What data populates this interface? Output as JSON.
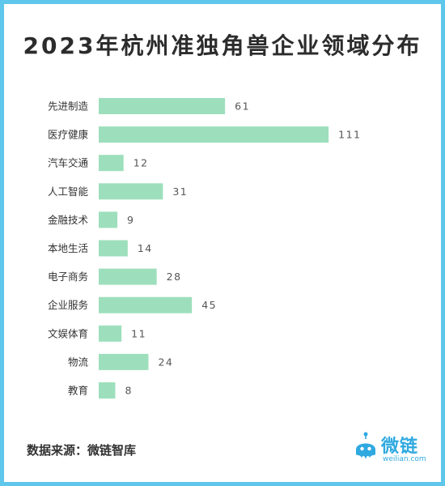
{
  "chart_data": {
    "type": "bar",
    "orientation": "horizontal",
    "title": "2023年杭州准独角兽企业领域分布",
    "categories": [
      "先进制造",
      "医疗健康",
      "汽车交通",
      "人工智能",
      "金融技术",
      "本地生活",
      "电子商务",
      "企业服务",
      "文娱体育",
      "物流",
      "教育"
    ],
    "values": [
      61,
      111,
      12,
      31,
      9,
      14,
      28,
      45,
      11,
      24,
      8
    ],
    "bar_color": "#9ddfbc",
    "grid": false
  },
  "footer": {
    "source": "数据来源：微链智库",
    "logo_text": "微链",
    "logo_url": "weilian.com"
  },
  "colors": {
    "border": "#5fc7ec",
    "brand": "#2fa9e0"
  }
}
